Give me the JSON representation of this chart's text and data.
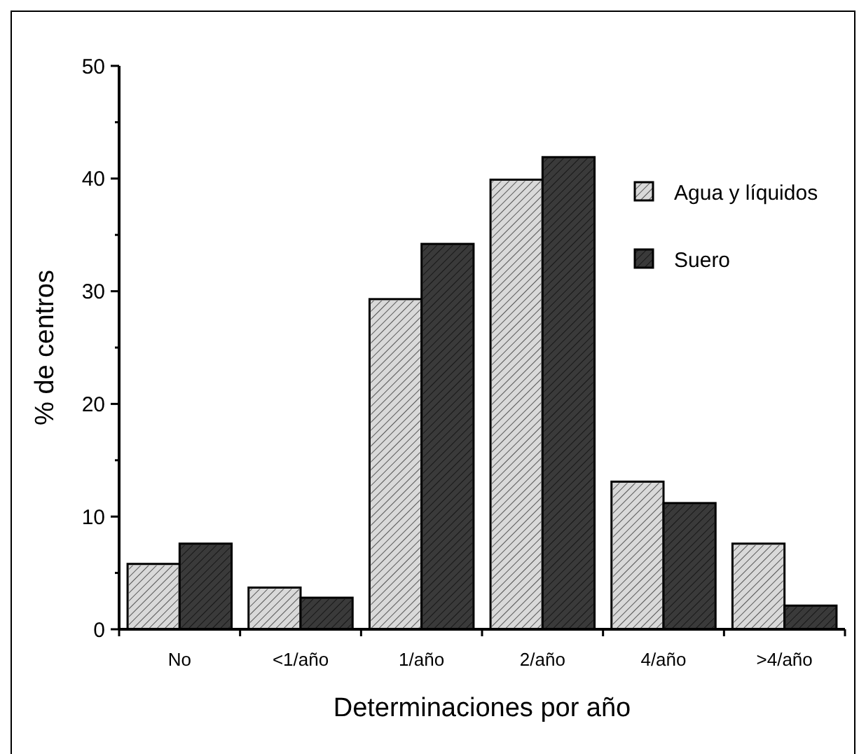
{
  "chart_data": {
    "type": "bar",
    "xlabel": "Determinaciones por año",
    "ylabel": "% de centros",
    "categories": [
      "No",
      "<1/año",
      "1/año",
      "2/año",
      "4/año",
      ">4/año"
    ],
    "series": [
      {
        "name": "Agua y líquidos",
        "color": "#d9d9d9",
        "values": [
          5.8,
          3.7,
          29.3,
          39.9,
          13.1,
          7.6
        ]
      },
      {
        "name": "Suero",
        "color": "#3a3a3a",
        "values": [
          7.6,
          2.8,
          34.2,
          41.9,
          11.2,
          2.1
        ]
      }
    ],
    "ylim": [
      0,
      50
    ],
    "yticks": [
      0,
      {
        "value": 5,
        "label": null
      },
      10,
      {
        "value": 15,
        "label": null
      },
      20,
      {
        "value": 25,
        "label": null
      },
      30,
      {
        "value": 35,
        "label": null
      },
      40,
      {
        "value": 45,
        "label": null
      },
      50
    ],
    "legend": "top right",
    "grid": false
  }
}
